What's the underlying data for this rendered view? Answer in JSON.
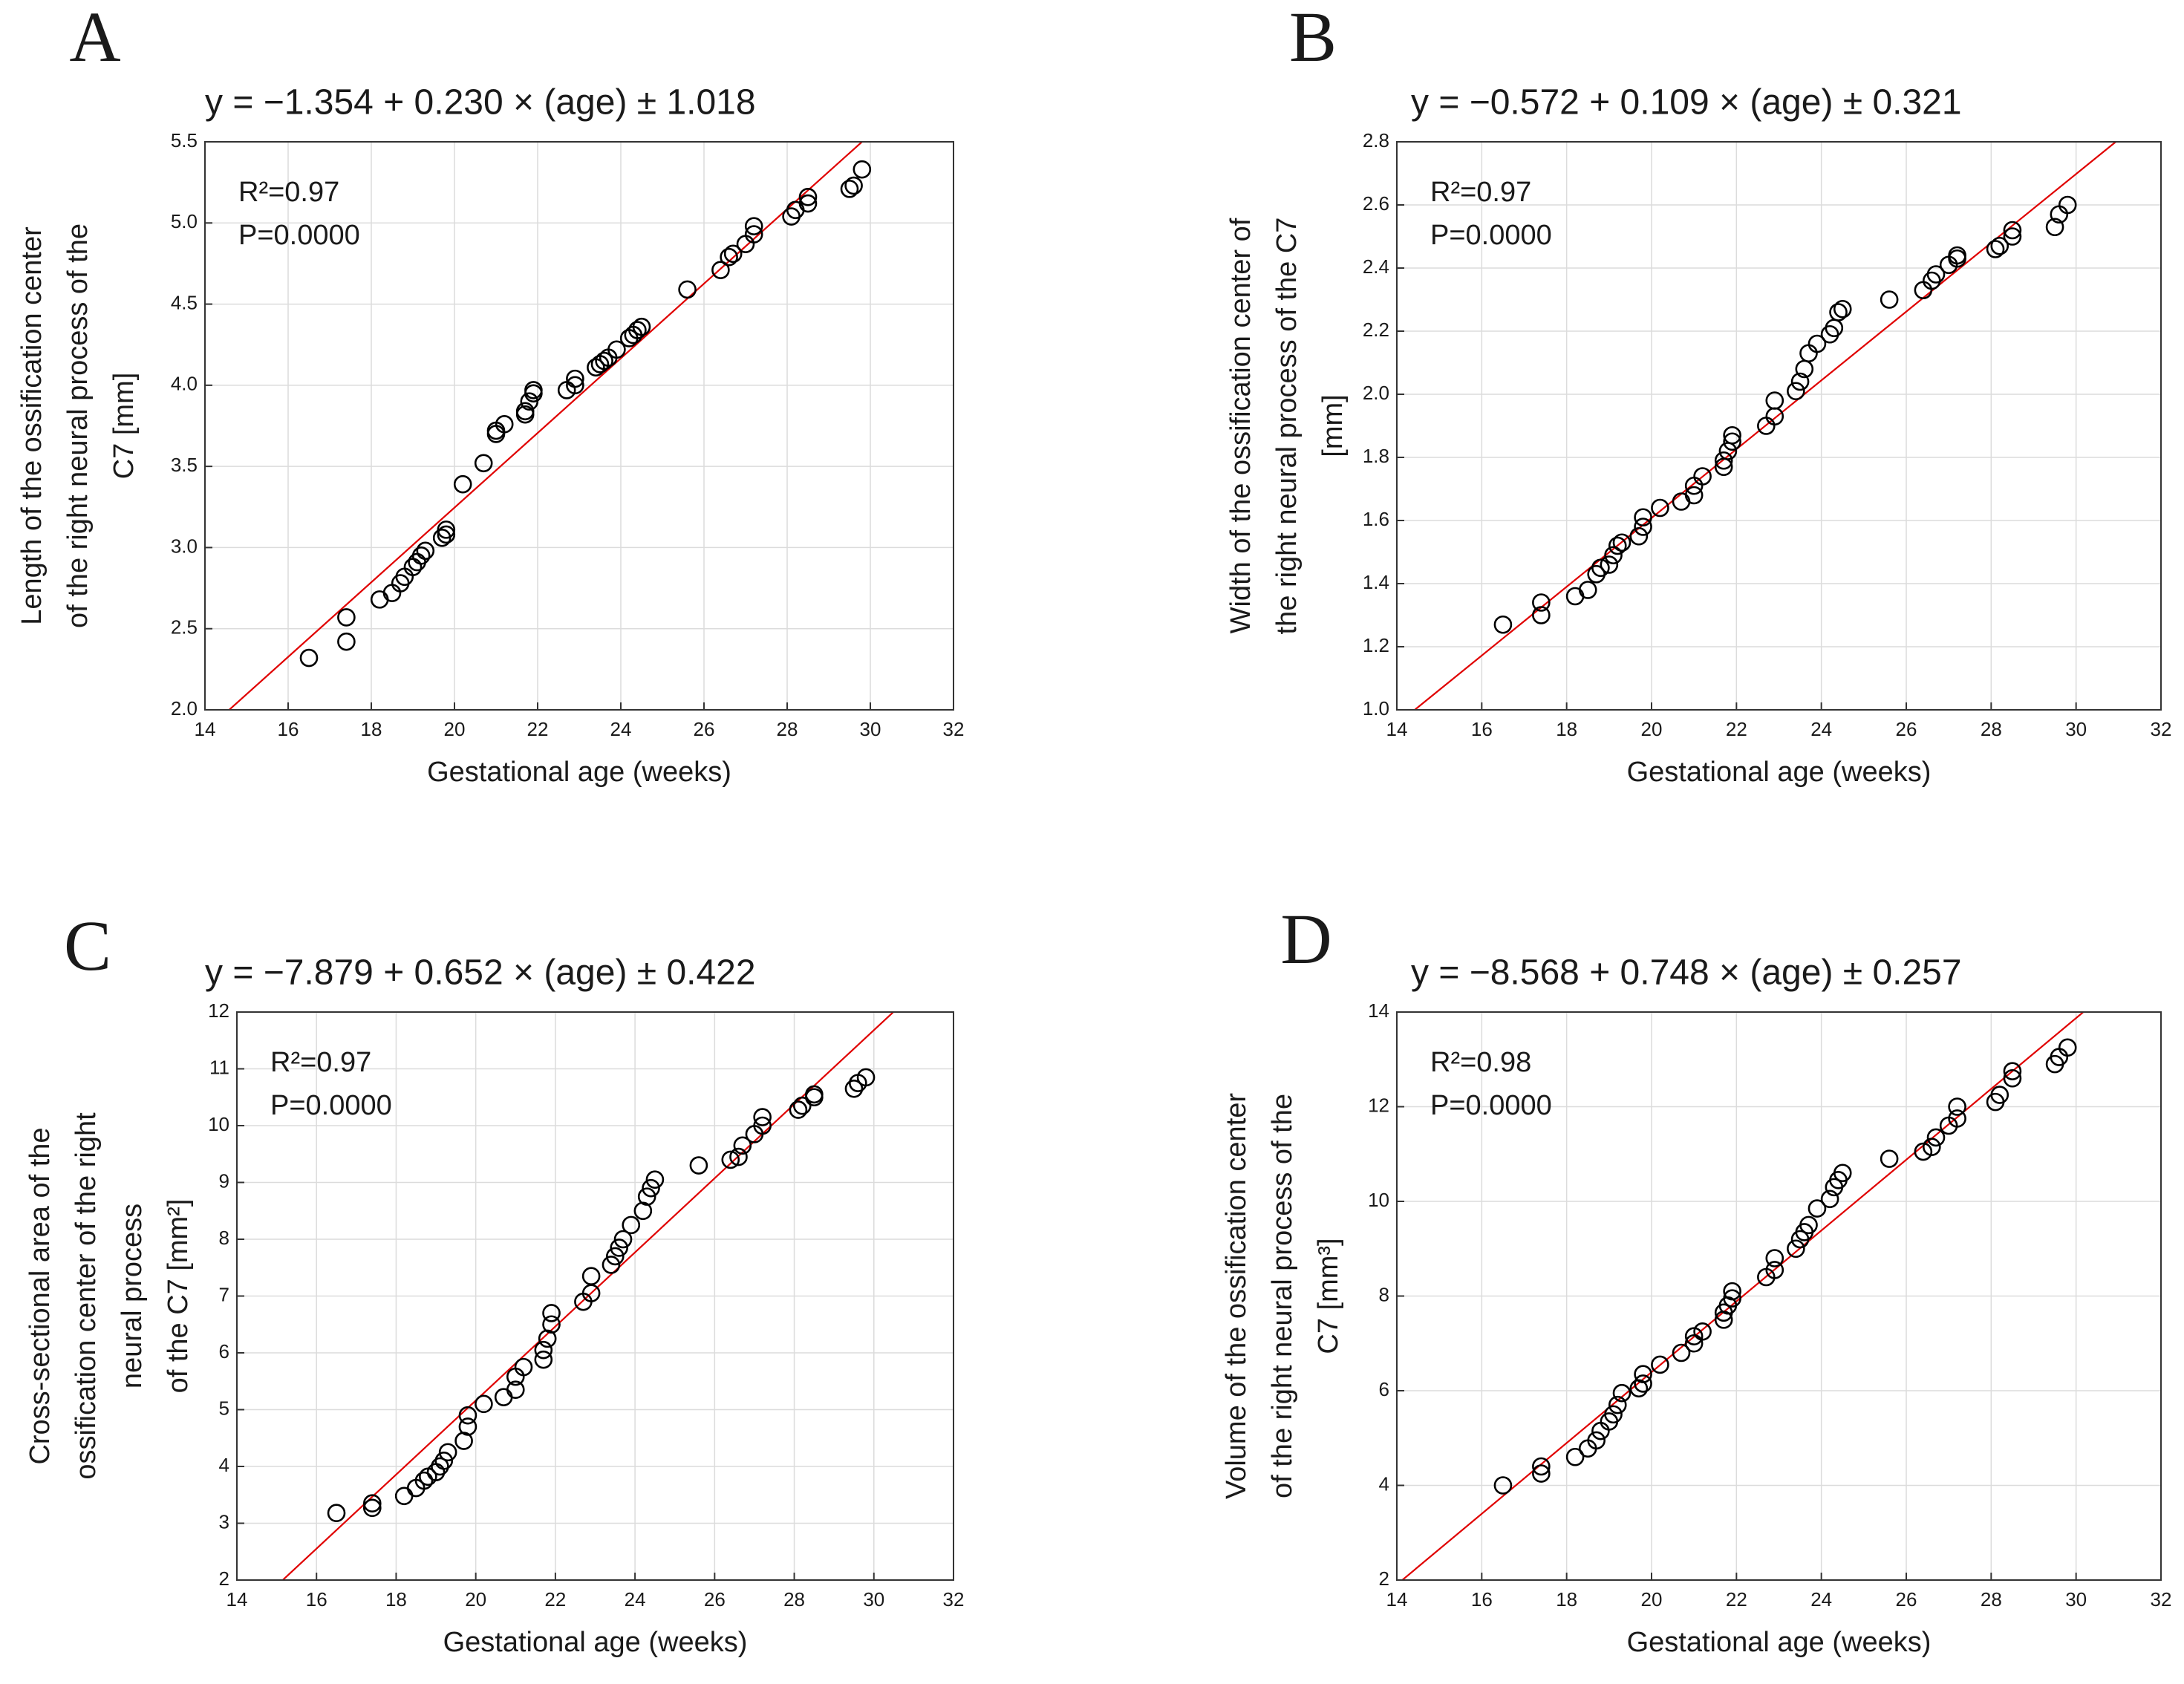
{
  "chart_data": [
    {
      "type": "scatter",
      "panel_label": "A",
      "title": "y = −1.354 + 0.230 × (age) ± 1.018",
      "ylabel": [
        "Length of the ossification center",
        "of the right neural process of the",
        "C7 [mm]"
      ],
      "xlabel": "Gestational age (weeks)",
      "annotations": [
        "R²=0.97",
        "P=0.0000"
      ],
      "xlim": [
        14,
        32
      ],
      "xticks": [
        14,
        16,
        18,
        20,
        22,
        24,
        26,
        28,
        30,
        32
      ],
      "ylim": [
        2,
        5.5
      ],
      "yticks": [
        {
          "value": 2,
          "label": "2.0"
        },
        2.5,
        {
          "value": 3,
          "label": "3.0"
        },
        3.5,
        {
          "value": 4,
          "label": "4.0"
        },
        4.5,
        {
          "value": 5,
          "label": "5.0"
        },
        5.5
      ],
      "grid": true,
      "color": "#000000",
      "fit": {
        "intercept": -1.354,
        "slope": 0.23,
        "color": "#e00000"
      },
      "x": [
        16.5,
        17.4,
        17.4,
        18.2,
        18.5,
        18.7,
        18.8,
        19.0,
        19.1,
        19.2,
        19.3,
        19.7,
        19.8,
        19.8,
        20.2,
        20.7,
        21.0,
        21.0,
        21.2,
        21.7,
        21.7,
        21.8,
        21.9,
        21.9,
        22.7,
        22.9,
        22.9,
        23.4,
        23.5,
        23.6,
        23.7,
        23.9,
        24.2,
        24.3,
        24.4,
        24.5,
        25.6,
        26.4,
        26.6,
        26.7,
        27.0,
        27.2,
        27.2,
        28.1,
        28.2,
        28.5,
        28.5,
        29.5,
        29.6,
        29.8
      ],
      "values": [
        2.32,
        2.42,
        2.57,
        2.68,
        2.72,
        2.78,
        2.82,
        2.88,
        2.91,
        2.95,
        2.98,
        3.06,
        3.08,
        3.11,
        3.39,
        3.52,
        3.7,
        3.72,
        3.76,
        3.82,
        3.84,
        3.9,
        3.95,
        3.97,
        3.97,
        4.0,
        4.04,
        4.11,
        4.13,
        4.15,
        4.17,
        4.22,
        4.29,
        4.31,
        4.34,
        4.36,
        4.59,
        4.71,
        4.79,
        4.81,
        4.87,
        4.93,
        4.98,
        5.04,
        5.08,
        5.12,
        5.16,
        5.21,
        5.23,
        5.33
      ]
    },
    {
      "type": "scatter",
      "panel_label": "B",
      "title": "y = −0.572 + 0.109 × (age) ± 0.321",
      "ylabel": [
        "Width of the ossification center of",
        "the right neural process of the C7",
        "[mm]"
      ],
      "xlabel": "Gestational age (weeks)",
      "annotations": [
        "R²=0.97",
        "P=0.0000"
      ],
      "xlim": [
        14,
        32
      ],
      "xticks": [
        14,
        16,
        18,
        20,
        22,
        24,
        26,
        28,
        30,
        32
      ],
      "ylim": [
        1,
        2.8
      ],
      "yticks": [
        {
          "value": 1,
          "label": "1.0"
        },
        1.2,
        1.4,
        1.6,
        1.8,
        {
          "value": 2,
          "label": "2.0"
        },
        2.2,
        2.4,
        2.6,
        2.8
      ],
      "grid": true,
      "color": "#000000",
      "fit": {
        "intercept": -0.572,
        "slope": 0.109,
        "color": "#e00000"
      },
      "x": [
        16.5,
        17.4,
        17.4,
        18.2,
        18.5,
        18.7,
        18.8,
        19.0,
        19.1,
        19.2,
        19.3,
        19.7,
        19.8,
        19.8,
        20.2,
        20.7,
        21.0,
        21.0,
        21.2,
        21.7,
        21.7,
        21.8,
        21.9,
        21.9,
        22.7,
        22.9,
        22.9,
        23.4,
        23.5,
        23.6,
        23.7,
        23.9,
        24.2,
        24.3,
        24.4,
        24.5,
        25.6,
        26.4,
        26.6,
        26.7,
        27.0,
        27.2,
        27.2,
        28.1,
        28.2,
        28.5,
        28.5,
        29.5,
        29.6,
        29.8
      ],
      "values": [
        1.27,
        1.3,
        1.34,
        1.36,
        1.38,
        1.43,
        1.45,
        1.46,
        1.49,
        1.52,
        1.53,
        1.55,
        1.58,
        1.61,
        1.64,
        1.66,
        1.68,
        1.71,
        1.74,
        1.77,
        1.79,
        1.82,
        1.85,
        1.87,
        1.9,
        1.93,
        1.98,
        2.01,
        2.04,
        2.08,
        2.13,
        2.16,
        2.19,
        2.21,
        2.26,
        2.27,
        2.3,
        2.33,
        2.36,
        2.38,
        2.41,
        2.43,
        2.44,
        2.46,
        2.47,
        2.5,
        2.52,
        2.53,
        2.57,
        2.6
      ]
    },
    {
      "type": "scatter",
      "panel_label": "C",
      "title": "y = −7.879 + 0.652 × (age) ± 0.422",
      "ylabel": [
        "Cross-sectional area of the",
        "ossification center of the right",
        "neural process",
        "of the C7 [mm²]"
      ],
      "xlabel": "Gestational age (weeks)",
      "annotations": [
        "R²=0.97",
        "P=0.0000"
      ],
      "xlim": [
        14,
        32
      ],
      "xticks": [
        14,
        16,
        18,
        20,
        22,
        24,
        26,
        28,
        30,
        32
      ],
      "ylim": [
        2,
        12
      ],
      "yticks": [
        2,
        3,
        4,
        5,
        6,
        7,
        8,
        9,
        10,
        11,
        12
      ],
      "grid": true,
      "color": "#000000",
      "fit": {
        "intercept": -7.879,
        "slope": 0.652,
        "color": "#e00000"
      },
      "x": [
        16.5,
        17.4,
        17.4,
        18.2,
        18.5,
        18.7,
        18.8,
        19.0,
        19.1,
        19.2,
        19.3,
        19.7,
        19.8,
        19.8,
        20.2,
        20.7,
        21.0,
        21.0,
        21.2,
        21.7,
        21.7,
        21.8,
        21.9,
        21.9,
        22.7,
        22.9,
        22.9,
        23.4,
        23.5,
        23.6,
        23.7,
        23.9,
        24.2,
        24.3,
        24.4,
        24.5,
        25.6,
        26.4,
        26.6,
        26.7,
        27.0,
        27.2,
        27.2,
        28.1,
        28.2,
        28.5,
        28.5,
        29.5,
        29.6,
        29.8
      ],
      "values": [
        3.18,
        3.27,
        3.35,
        3.48,
        3.62,
        3.75,
        3.82,
        3.9,
        4.0,
        4.1,
        4.25,
        4.45,
        4.7,
        4.9,
        5.1,
        5.22,
        5.35,
        5.58,
        5.75,
        5.88,
        6.05,
        6.25,
        6.5,
        6.7,
        6.9,
        7.05,
        7.35,
        7.55,
        7.7,
        7.85,
        8.0,
        8.25,
        8.5,
        8.75,
        8.9,
        9.05,
        9.3,
        9.4,
        9.45,
        9.65,
        9.85,
        10.0,
        10.15,
        10.28,
        10.35,
        10.5,
        10.55,
        10.65,
        10.75,
        10.85
      ]
    },
    {
      "type": "scatter",
      "panel_label": "D",
      "title": "y = −8.568 + 0.748 × (age) ± 0.257",
      "ylabel": [
        "Volume of the ossification center",
        "of the right neural process of the",
        "C7 [mm³]"
      ],
      "xlabel": "Gestational age (weeks)",
      "annotations": [
        "R²=0.98",
        "P=0.0000"
      ],
      "xlim": [
        14,
        32
      ],
      "xticks": [
        14,
        16,
        18,
        20,
        22,
        24,
        26,
        28,
        30,
        32
      ],
      "ylim": [
        2,
        14
      ],
      "yticks": [
        2,
        4,
        6,
        8,
        10,
        12,
        14
      ],
      "grid": true,
      "color": "#000000",
      "fit": {
        "intercept": -8.568,
        "slope": 0.748,
        "color": "#e00000"
      },
      "x": [
        16.5,
        17.4,
        17.4,
        18.2,
        18.5,
        18.7,
        18.8,
        19.0,
        19.1,
        19.2,
        19.3,
        19.7,
        19.8,
        19.8,
        20.2,
        20.7,
        21.0,
        21.0,
        21.2,
        21.7,
        21.7,
        21.8,
        21.9,
        21.9,
        22.7,
        22.9,
        22.9,
        23.4,
        23.5,
        23.6,
        23.7,
        23.9,
        24.2,
        24.3,
        24.4,
        24.5,
        25.6,
        26.4,
        26.6,
        26.7,
        27.0,
        27.2,
        27.2,
        28.1,
        28.2,
        28.5,
        28.5,
        29.5,
        29.6,
        29.8
      ],
      "values": [
        4.0,
        4.25,
        4.4,
        4.6,
        4.78,
        4.95,
        5.15,
        5.35,
        5.5,
        5.7,
        5.95,
        6.05,
        6.15,
        6.35,
        6.55,
        6.8,
        7.0,
        7.15,
        7.25,
        7.5,
        7.65,
        7.8,
        7.95,
        8.1,
        8.4,
        8.55,
        8.8,
        9.0,
        9.2,
        9.35,
        9.5,
        9.85,
        10.05,
        10.3,
        10.45,
        10.6,
        10.9,
        11.05,
        11.15,
        11.35,
        11.6,
        11.75,
        12.0,
        12.1,
        12.25,
        12.6,
        12.75,
        12.9,
        13.05,
        13.25
      ]
    }
  ]
}
